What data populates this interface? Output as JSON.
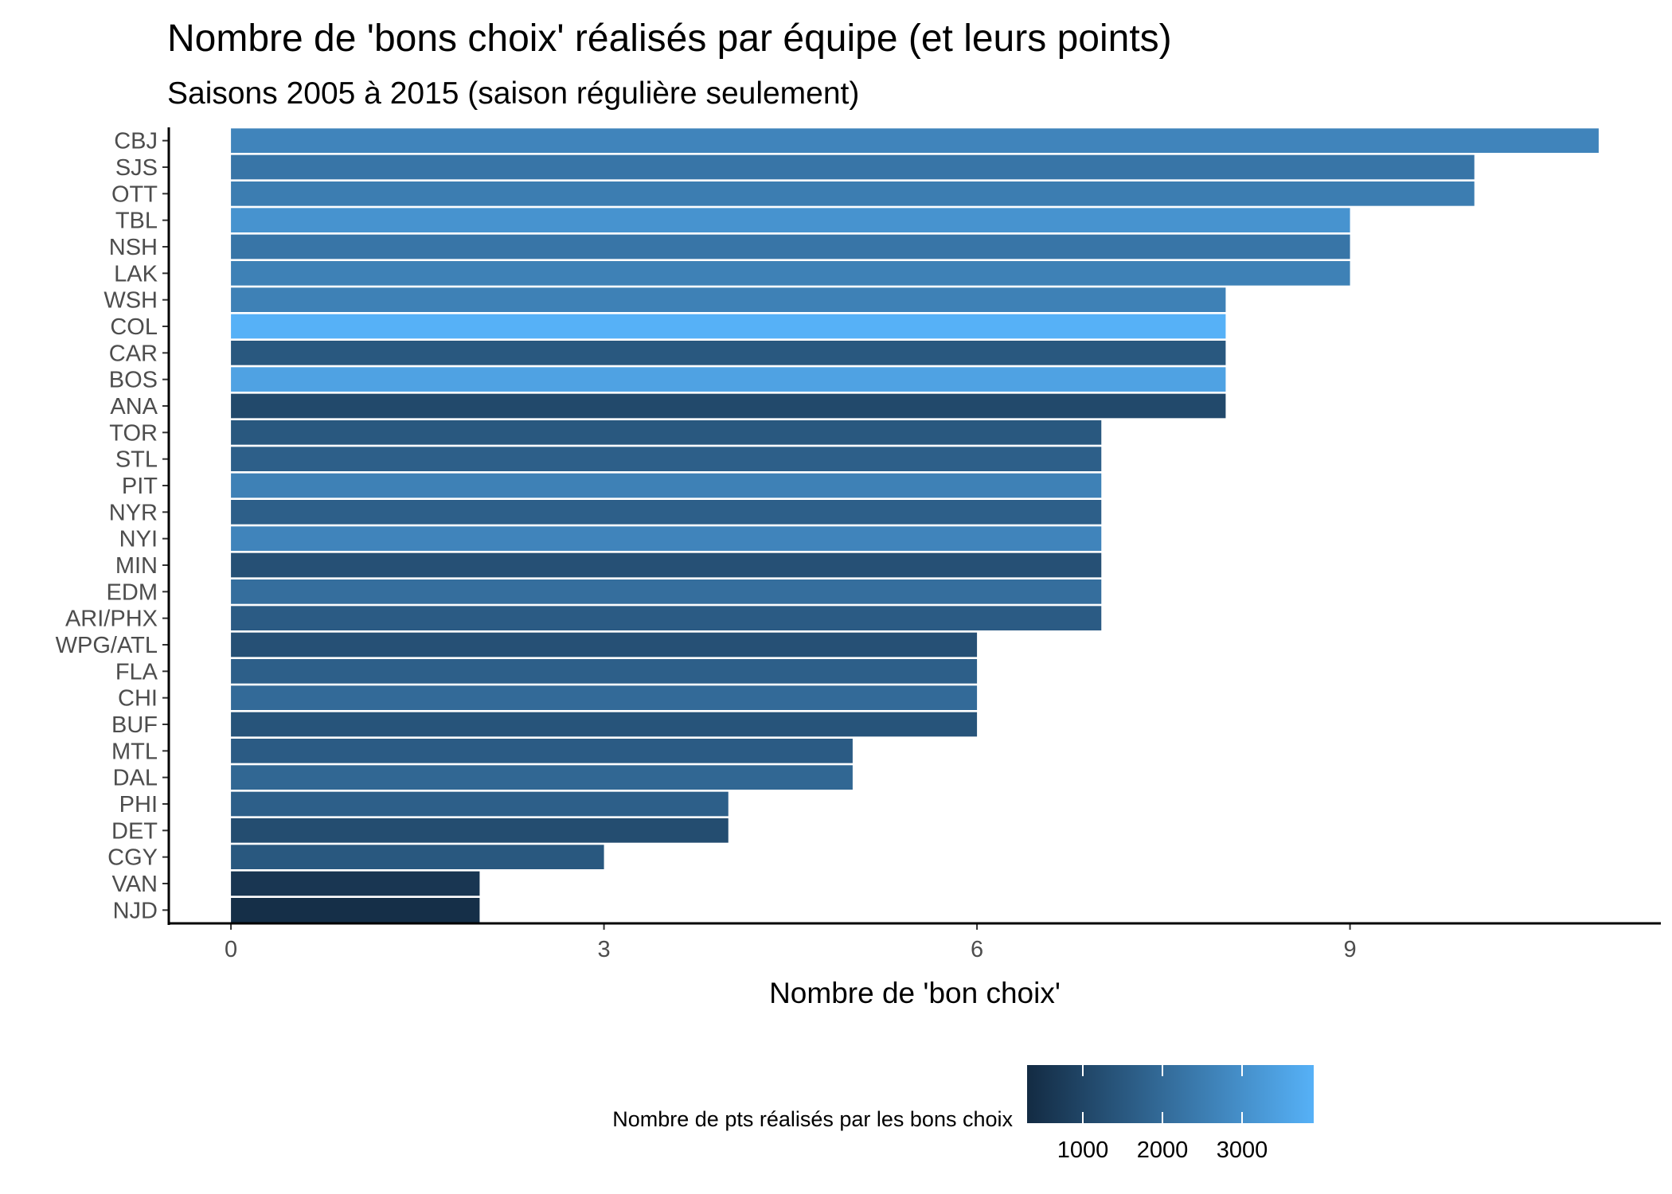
{
  "chart_data": {
    "type": "bar",
    "orientation": "horizontal",
    "title": "Nombre de 'bons choix' réalisés par équipe (et leurs points)",
    "subtitle": "Saisons 2005 à 2015 (saison régulière seulement)",
    "xlabel": "Nombre de 'bon choix'",
    "ylabel": "",
    "xlim": [
      -0.5,
      11.5
    ],
    "x_ticks": [
      0,
      3,
      6,
      9
    ],
    "grid": false,
    "legend": {
      "title": "Nombre de pts réalisés par les bons choix",
      "placement": "bottom",
      "type": "colorbar",
      "range": [
        300,
        3900
      ],
      "ticks": [
        1000,
        2000,
        3000
      ],
      "color_low": "#132B43",
      "color_high": "#56B1F7"
    },
    "categories": [
      "CBJ",
      "SJS",
      "OTT",
      "TBL",
      "NSH",
      "LAK",
      "WSH",
      "COL",
      "CAR",
      "BOS",
      "ANA",
      "TOR",
      "STL",
      "PIT",
      "NYR",
      "NYI",
      "MIN",
      "EDM",
      "ARI/PHX",
      "WPG/ATL",
      "FLA",
      "CHI",
      "BUF",
      "MTL",
      "DAL",
      "PHI",
      "DET",
      "CGY",
      "VAN",
      "NJD"
    ],
    "values": [
      11,
      10,
      10,
      9,
      9,
      9,
      8,
      8,
      8,
      8,
      8,
      7,
      7,
      7,
      7,
      7,
      7,
      7,
      7,
      6,
      6,
      6,
      6,
      5,
      5,
      4,
      4,
      3,
      2,
      2
    ],
    "color_values": [
      2700,
      2300,
      2500,
      3100,
      2300,
      2600,
      2600,
      3900,
      1500,
      3500,
      1100,
      1500,
      1700,
      2600,
      1700,
      2700,
      1300,
      2100,
      1600,
      1300,
      1700,
      2000,
      1400,
      1600,
      1900,
      1700,
      1200,
      1500,
      600,
      400
    ]
  }
}
